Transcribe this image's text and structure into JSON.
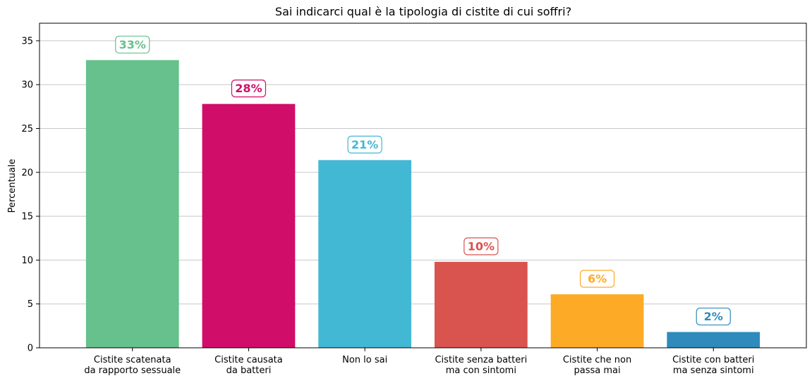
{
  "chart_data": {
    "type": "bar",
    "title": "Sai indicarci qual è la tipologia di cistite di cui soffri?",
    "xlabel": "",
    "ylabel": "Percentuale",
    "ylim": [
      0,
      37
    ],
    "yticks": [
      0,
      5,
      10,
      15,
      20,
      25,
      30,
      35
    ],
    "grid": "horizontal",
    "categories": [
      [
        "Cistite scatenata",
        "da rapporto sessuale"
      ],
      [
        "Cistite causata",
        "da batteri"
      ],
      [
        "Non lo sai"
      ],
      [
        "Cistite senza batteri",
        "ma con sintomi"
      ],
      [
        "Cistite che non",
        "passa mai"
      ],
      [
        "Cistite con batteri",
        "ma senza sintomi"
      ]
    ],
    "values": [
      32.8,
      27.8,
      21.4,
      9.8,
      6.1,
      1.8
    ],
    "data_labels": [
      "33%",
      "28%",
      "21%",
      "10%",
      "6%",
      "2%"
    ],
    "colors": [
      "#66c18c",
      "#d00d69",
      "#42b8d5",
      "#d9534f",
      "#fdab26",
      "#2e8bbb"
    ]
  }
}
